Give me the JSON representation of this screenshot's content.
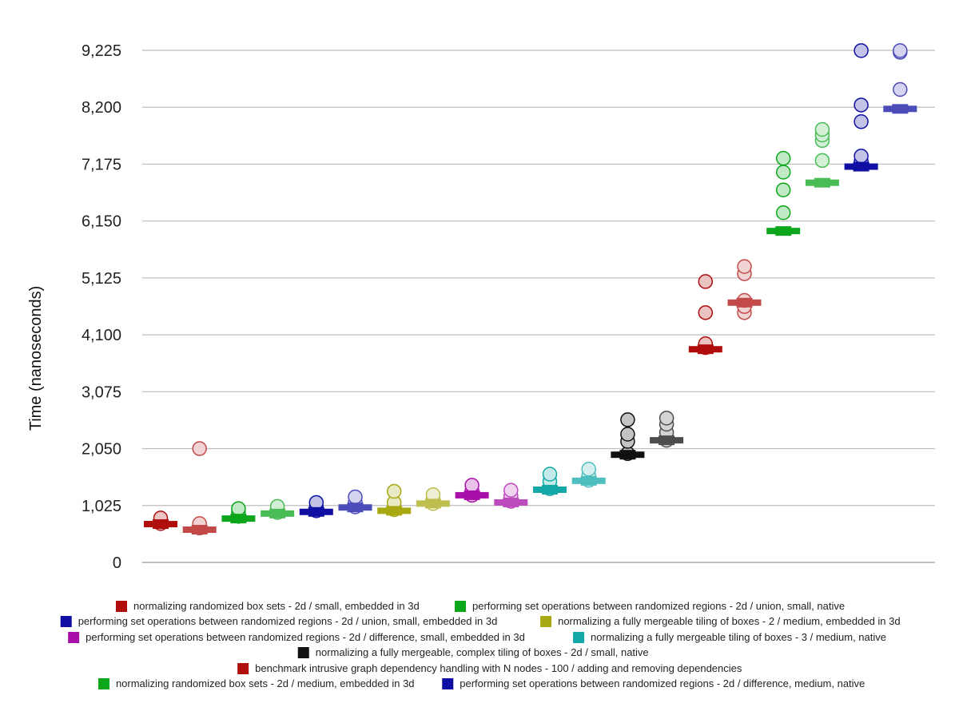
{
  "chart_data": {
    "type": "scatter",
    "xlabel": "",
    "ylabel": "Time (nanoseconds)",
    "ylim": [
      0,
      9225
    ],
    "yticks": [
      "0",
      "1,025",
      "2,050",
      "3,075",
      "4,100",
      "5,125",
      "6,150",
      "7,175",
      "8,200",
      "9,225"
    ],
    "ytick_values": [
      0,
      1025,
      2050,
      3075,
      4100,
      5125,
      6150,
      7175,
      8200,
      9225
    ],
    "grid": true,
    "legend_position": "bottom",
    "series": [
      {
        "name": "normalizing randomized box sets - 2d / small, embedded in 3d",
        "color": "#b00d0d",
        "pairs": [
          {
            "median": 690,
            "points": [
              700,
              760,
              800
            ]
          },
          {
            "median": 590,
            "points": [
              620,
              700,
              2050
            ]
          }
        ]
      },
      {
        "name": "performing set operations between randomized regions - 2d / union, small, native",
        "color": "#0ca61c",
        "pairs": [
          {
            "median": 790,
            "points": [
              830,
              900,
              970
            ]
          },
          {
            "median": 880,
            "points": [
              900,
              960,
              1010
            ]
          }
        ]
      },
      {
        "name": "performing set operations between randomized regions - 2d / union, small, embedded in 3d",
        "color": "#0f0fa3",
        "pairs": [
          {
            "median": 910,
            "points": [
              930,
              1000,
              1080
            ]
          },
          {
            "median": 990,
            "points": [
              1000,
              1080,
              1180
            ]
          }
        ]
      },
      {
        "name": "normalizing a fully mergeable tiling of boxes - 2 / medium, embedded in 3d",
        "color": "#a8a813",
        "pairs": [
          {
            "median": 930,
            "points": [
              950,
              1080,
              1280
            ]
          },
          {
            "median": 1060,
            "points": [
              1060,
              1130,
              1220
            ]
          }
        ]
      },
      {
        "name": "performing set operations between randomized regions - 2d / difference, small, embedded in 3d",
        "color": "#a80fa8",
        "pairs": [
          {
            "median": 1210,
            "points": [
              1210,
              1290,
              1390
            ]
          },
          {
            "median": 1080,
            "points": [
              1100,
              1200,
              1300
            ]
          }
        ]
      },
      {
        "name": "normalizing a fully mergeable tiling of boxes - 3 / medium, native",
        "color": "#13a8a8",
        "pairs": [
          {
            "median": 1310,
            "points": [
              1330,
              1460,
              1590
            ]
          },
          {
            "median": 1470,
            "points": [
              1480,
              1570,
              1680
            ]
          }
        ]
      },
      {
        "name": "normalizing a fully mergeable, complex tiling of boxes - 2d / small, native",
        "color": "#111111",
        "pairs": [
          {
            "median": 1940,
            "points": [
              1960,
              2180,
              2310,
              2570
            ]
          },
          {
            "median": 2200,
            "points": [
              2200,
              2340,
              2490,
              2600
            ]
          }
        ]
      },
      {
        "name": "benchmark intrusive graph dependency handling with N nodes - 100 / adding and removing dependencies",
        "color": "#b00d0d",
        "pairs": [
          {
            "median": 3840,
            "points": [
              3870,
              3940,
              4500,
              5060
            ]
          },
          {
            "median": 4680,
            "points": [
              4500,
              4610,
              4720,
              5200,
              5330
            ]
          }
        ]
      },
      {
        "name": "normalizing randomized box sets - 2d / medium, embedded in 3d",
        "color": "#0ca61c",
        "pairs": [
          {
            "median": 5970,
            "points": [
              6300,
              6710,
              7030,
              7280
            ]
          },
          {
            "median": 6840,
            "points": [
              7240,
              7600,
              7700,
              7800
            ]
          }
        ]
      },
      {
        "name": "performing set operations between randomized regions - 2d / difference, medium, native",
        "color": "#0f0fa3",
        "pairs": [
          {
            "median": 7130,
            "points": [
              7230,
              7320,
              7940,
              8240,
              9220
            ]
          },
          {
            "median": 8170,
            "points": [
              8520,
              9190,
              9220
            ]
          }
        ]
      }
    ]
  }
}
